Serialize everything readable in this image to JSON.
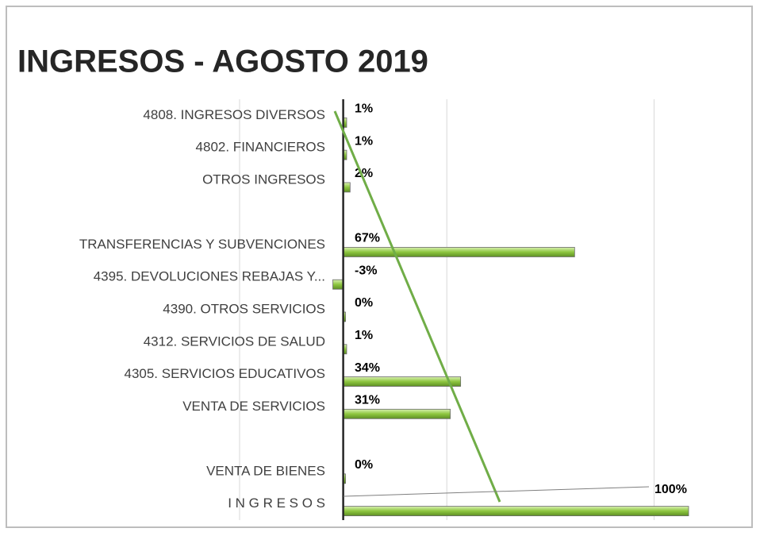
{
  "chart_data": {
    "type": "hbar",
    "title": "INGRESOS - AGOSTO 2019",
    "categories": [
      "4808. INGRESOS DIVERSOS",
      "4802. FINANCIEROS",
      "OTROS INGRESOS",
      null,
      "TRANSFERENCIAS Y SUBVENCIONES",
      "4395. DEVOLUCIONES  REBAJAS Y...",
      "4390. OTROS SERVICIOS",
      "4312. SERVICIOS DE SALUD",
      "4305. SERVICIOS EDUCATIVOS",
      "VENTA DE SERVICIOS",
      null,
      "VENTA DE BIENES",
      "I N G R E S O S"
    ],
    "values": [
      1,
      1,
      2,
      null,
      67,
      -3,
      0,
      1,
      34,
      31,
      null,
      0,
      100
    ],
    "value_labels": [
      "1%",
      "1%",
      "2%",
      null,
      "67%",
      "-3%",
      "0%",
      "1%",
      "34%",
      "31%",
      null,
      "0%",
      "100%"
    ],
    "color": "#8dc63f",
    "xlim": [
      -30,
      100
    ],
    "xticks": [
      -30,
      0,
      30,
      90
    ],
    "grid": true
  }
}
